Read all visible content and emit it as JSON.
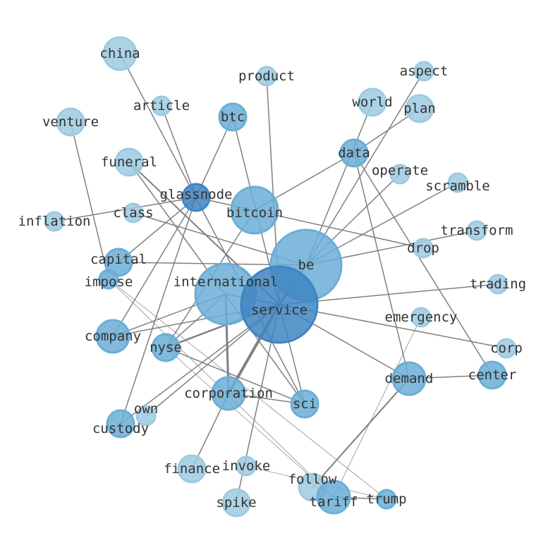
{
  "graph": {
    "nodes": [
      {
        "label": "china",
        "size": "m",
        "tone": "light"
      },
      {
        "label": "article",
        "size": "s",
        "tone": "light"
      },
      {
        "label": "product",
        "size": "s",
        "tone": "light"
      },
      {
        "label": "aspect",
        "size": "s",
        "tone": "light"
      },
      {
        "label": "world",
        "size": "m",
        "tone": "light"
      },
      {
        "label": "plan",
        "size": "m",
        "tone": "light"
      },
      {
        "label": "venture",
        "size": "m",
        "tone": "light"
      },
      {
        "label": "btc",
        "size": "m",
        "tone": "mid"
      },
      {
        "label": "funeral",
        "size": "m",
        "tone": "light"
      },
      {
        "label": "data",
        "size": "m",
        "tone": "mid"
      },
      {
        "label": "operate",
        "size": "s",
        "tone": "light"
      },
      {
        "label": "scramble",
        "size": "s",
        "tone": "light"
      },
      {
        "label": "glassnode",
        "size": "m",
        "tone": "dark"
      },
      {
        "label": "bitcoin",
        "size": "l",
        "tone": "mid"
      },
      {
        "label": "class",
        "size": "s",
        "tone": "light"
      },
      {
        "label": "inflation",
        "size": "s",
        "tone": "light"
      },
      {
        "label": "transform",
        "size": "s",
        "tone": "light"
      },
      {
        "label": "drop",
        "size": "s",
        "tone": "light"
      },
      {
        "label": "capital",
        "size": "m",
        "tone": "mid"
      },
      {
        "label": "be",
        "size": "xl",
        "tone": "mid"
      },
      {
        "label": "impose",
        "size": "s",
        "tone": "mid"
      },
      {
        "label": "trading",
        "size": "s",
        "tone": "light"
      },
      {
        "label": "international",
        "size": "xl",
        "tone": "mid"
      },
      {
        "label": "service",
        "size": "xxl",
        "tone": "dark"
      },
      {
        "label": "emergency",
        "size": "s",
        "tone": "light"
      },
      {
        "label": "company",
        "size": "m",
        "tone": "mid"
      },
      {
        "label": "corp",
        "size": "s",
        "tone": "light"
      },
      {
        "label": "nyse",
        "size": "m",
        "tone": "mid"
      },
      {
        "label": "demand",
        "size": "m",
        "tone": "mid"
      },
      {
        "label": "center",
        "size": "m",
        "tone": "mid"
      },
      {
        "label": "corporation",
        "size": "m",
        "tone": "mid"
      },
      {
        "label": "sci",
        "size": "m",
        "tone": "mid"
      },
      {
        "label": "own",
        "size": "s",
        "tone": "light"
      },
      {
        "label": "custody",
        "size": "m",
        "tone": "mid"
      },
      {
        "label": "finance",
        "size": "m",
        "tone": "light"
      },
      {
        "label": "invoke",
        "size": "s",
        "tone": "light"
      },
      {
        "label": "follow",
        "size": "m",
        "tone": "light"
      },
      {
        "label": "tariff",
        "size": "m",
        "tone": "mid"
      },
      {
        "label": "trump",
        "size": "s",
        "tone": "mid"
      },
      {
        "label": "spike",
        "size": "m",
        "tone": "light"
      }
    ],
    "edges": [
      [
        "service",
        "be",
        3
      ],
      [
        "service",
        "international",
        2
      ],
      [
        "service",
        "corporation",
        4
      ],
      [
        "service",
        "sci",
        1.5
      ],
      [
        "service",
        "trading",
        1.5
      ],
      [
        "service",
        "corp",
        1.5
      ],
      [
        "service",
        "demand",
        1.5
      ],
      [
        "service",
        "company",
        1.5
      ],
      [
        "service",
        "nyse",
        2.5
      ],
      [
        "service",
        "custody",
        1.5
      ],
      [
        "service",
        "own",
        1.5
      ],
      [
        "service",
        "spike",
        1.5
      ],
      [
        "service",
        "product",
        1.5
      ],
      [
        "service",
        "btc",
        1.5
      ],
      [
        "service",
        "funeral",
        2
      ],
      [
        "be",
        "world",
        1.5
      ],
      [
        "be",
        "aspect",
        1.5
      ],
      [
        "be",
        "operate",
        1.5
      ],
      [
        "be",
        "scramble",
        1.5
      ],
      [
        "be",
        "transform",
        1.5
      ],
      [
        "be",
        "class",
        1.5
      ],
      [
        "be",
        "capital",
        1.5
      ],
      [
        "glassnode",
        "drop",
        1.5
      ],
      [
        "bitcoin",
        "data",
        1.5
      ],
      [
        "bitcoin",
        "nyse",
        1.5
      ],
      [
        "glassnode",
        "btc",
        1.5
      ],
      [
        "glassnode",
        "article",
        1.5
      ],
      [
        "glassnode",
        "inflation",
        1.5
      ],
      [
        "glassnode",
        "capital",
        1.5
      ],
      [
        "glassnode",
        "company",
        1.5
      ],
      [
        "glassnode",
        "custody",
        1.5
      ],
      [
        "china",
        "sci",
        1.5
      ],
      [
        "venture",
        "impose",
        1.5
      ],
      [
        "impose",
        "tariff",
        0.7
      ],
      [
        "impose",
        "trump",
        0.7
      ],
      [
        "international",
        "corporation",
        3
      ],
      [
        "international",
        "nyse",
        1.5
      ],
      [
        "international",
        "company",
        1.5
      ],
      [
        "funeral",
        "sci",
        1.5
      ],
      [
        "nyse",
        "sci",
        1.5
      ],
      [
        "nyse",
        "tariff",
        0.7
      ],
      [
        "data",
        "demand",
        1.5
      ],
      [
        "data",
        "plan",
        1.5
      ],
      [
        "data",
        "center",
        1.5
      ],
      [
        "corporation",
        "sci",
        1.5
      ],
      [
        "corporation",
        "finance",
        1.5
      ],
      [
        "demand",
        "center",
        1.5
      ],
      [
        "demand",
        "follow",
        2
      ],
      [
        "emergency",
        "tariff",
        0.7
      ],
      [
        "invoke",
        "trump",
        0.7
      ],
      [
        "tariff",
        "trump",
        1.5
      ]
    ]
  }
}
